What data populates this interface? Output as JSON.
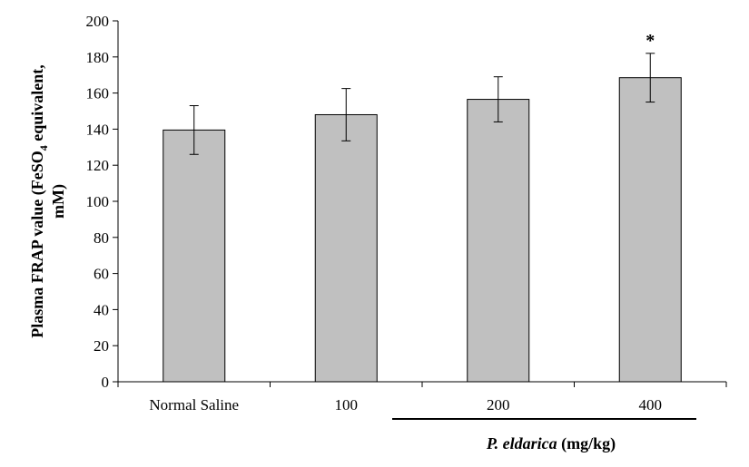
{
  "chart_data": {
    "type": "bar",
    "categories": [
      "Normal Saline",
      "100",
      "200",
      "400"
    ],
    "values": [
      139.5,
      148,
      156.5,
      168.5
    ],
    "errors": [
      13.5,
      14.5,
      12.5,
      13.5
    ],
    "annotations": [
      "",
      "",
      "",
      "*"
    ],
    "ylabel_line1_pre": "Plasma FRAP value (FeSO",
    "ylabel_line1_sub": "4",
    "ylabel_line1_post": " equivalent,",
    "ylabel_line2": "mM)",
    "xlabel_italic": "P. eldarica",
    "xlabel_rest": " (mg/kg)",
    "ylim": [
      0,
      200
    ],
    "ytick_step": 20,
    "ytick_labels": [
      "0",
      "20",
      "40",
      "60",
      "80",
      "100",
      "120",
      "140",
      "160",
      "180",
      "200"
    ],
    "grid": false,
    "legend": "none",
    "bar_color": "#c0c0c0",
    "edge_color": "#000000"
  }
}
